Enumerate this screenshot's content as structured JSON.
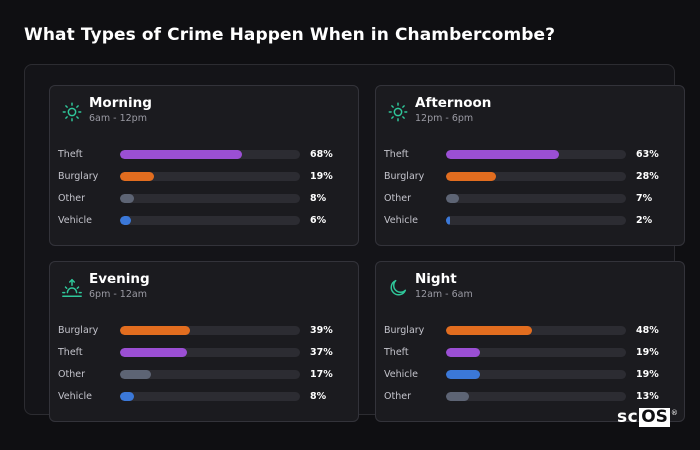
{
  "title": "What Types of Crime Happen When in Chambercombe?",
  "colors": {
    "Theft": "#9b4fd4",
    "Burglary": "#e26d1f",
    "Other": "#5d6474",
    "Vehicle": "#3b78d8",
    "icon": "#2fc79a"
  },
  "logo": {
    "sc": "sc",
    "os": "OS",
    "reg": "®"
  },
  "chart_data": {
    "type": "bar",
    "title": "What Types of Crime Happen When in Chambercombe?",
    "panels": [
      {
        "name": "Morning",
        "range": "6am - 12pm",
        "icon": "sun-icon",
        "rows": [
          {
            "label": "Theft",
            "value": 68,
            "display": "68%"
          },
          {
            "label": "Burglary",
            "value": 19,
            "display": "19%"
          },
          {
            "label": "Other",
            "value": 8,
            "display": "8%"
          },
          {
            "label": "Vehicle",
            "value": 6,
            "display": "6%"
          }
        ]
      },
      {
        "name": "Afternoon",
        "range": "12pm - 6pm",
        "icon": "sun-icon",
        "rows": [
          {
            "label": "Theft",
            "value": 63,
            "display": "63%"
          },
          {
            "label": "Burglary",
            "value": 28,
            "display": "28%"
          },
          {
            "label": "Other",
            "value": 7,
            "display": "7%"
          },
          {
            "label": "Vehicle",
            "value": 2,
            "display": "2%"
          }
        ]
      },
      {
        "name": "Evening",
        "range": "6pm - 12am",
        "icon": "sunset-icon",
        "rows": [
          {
            "label": "Burglary",
            "value": 39,
            "display": "39%"
          },
          {
            "label": "Theft",
            "value": 37,
            "display": "37%"
          },
          {
            "label": "Other",
            "value": 17,
            "display": "17%"
          },
          {
            "label": "Vehicle",
            "value": 8,
            "display": "8%"
          }
        ]
      },
      {
        "name": "Night",
        "range": "12am - 6am",
        "icon": "moon-icon",
        "rows": [
          {
            "label": "Burglary",
            "value": 48,
            "display": "48%"
          },
          {
            "label": "Theft",
            "value": 19,
            "display": "19%"
          },
          {
            "label": "Vehicle",
            "value": 19,
            "display": "19%"
          },
          {
            "label": "Other",
            "value": 13,
            "display": "13%"
          }
        ]
      }
    ]
  }
}
